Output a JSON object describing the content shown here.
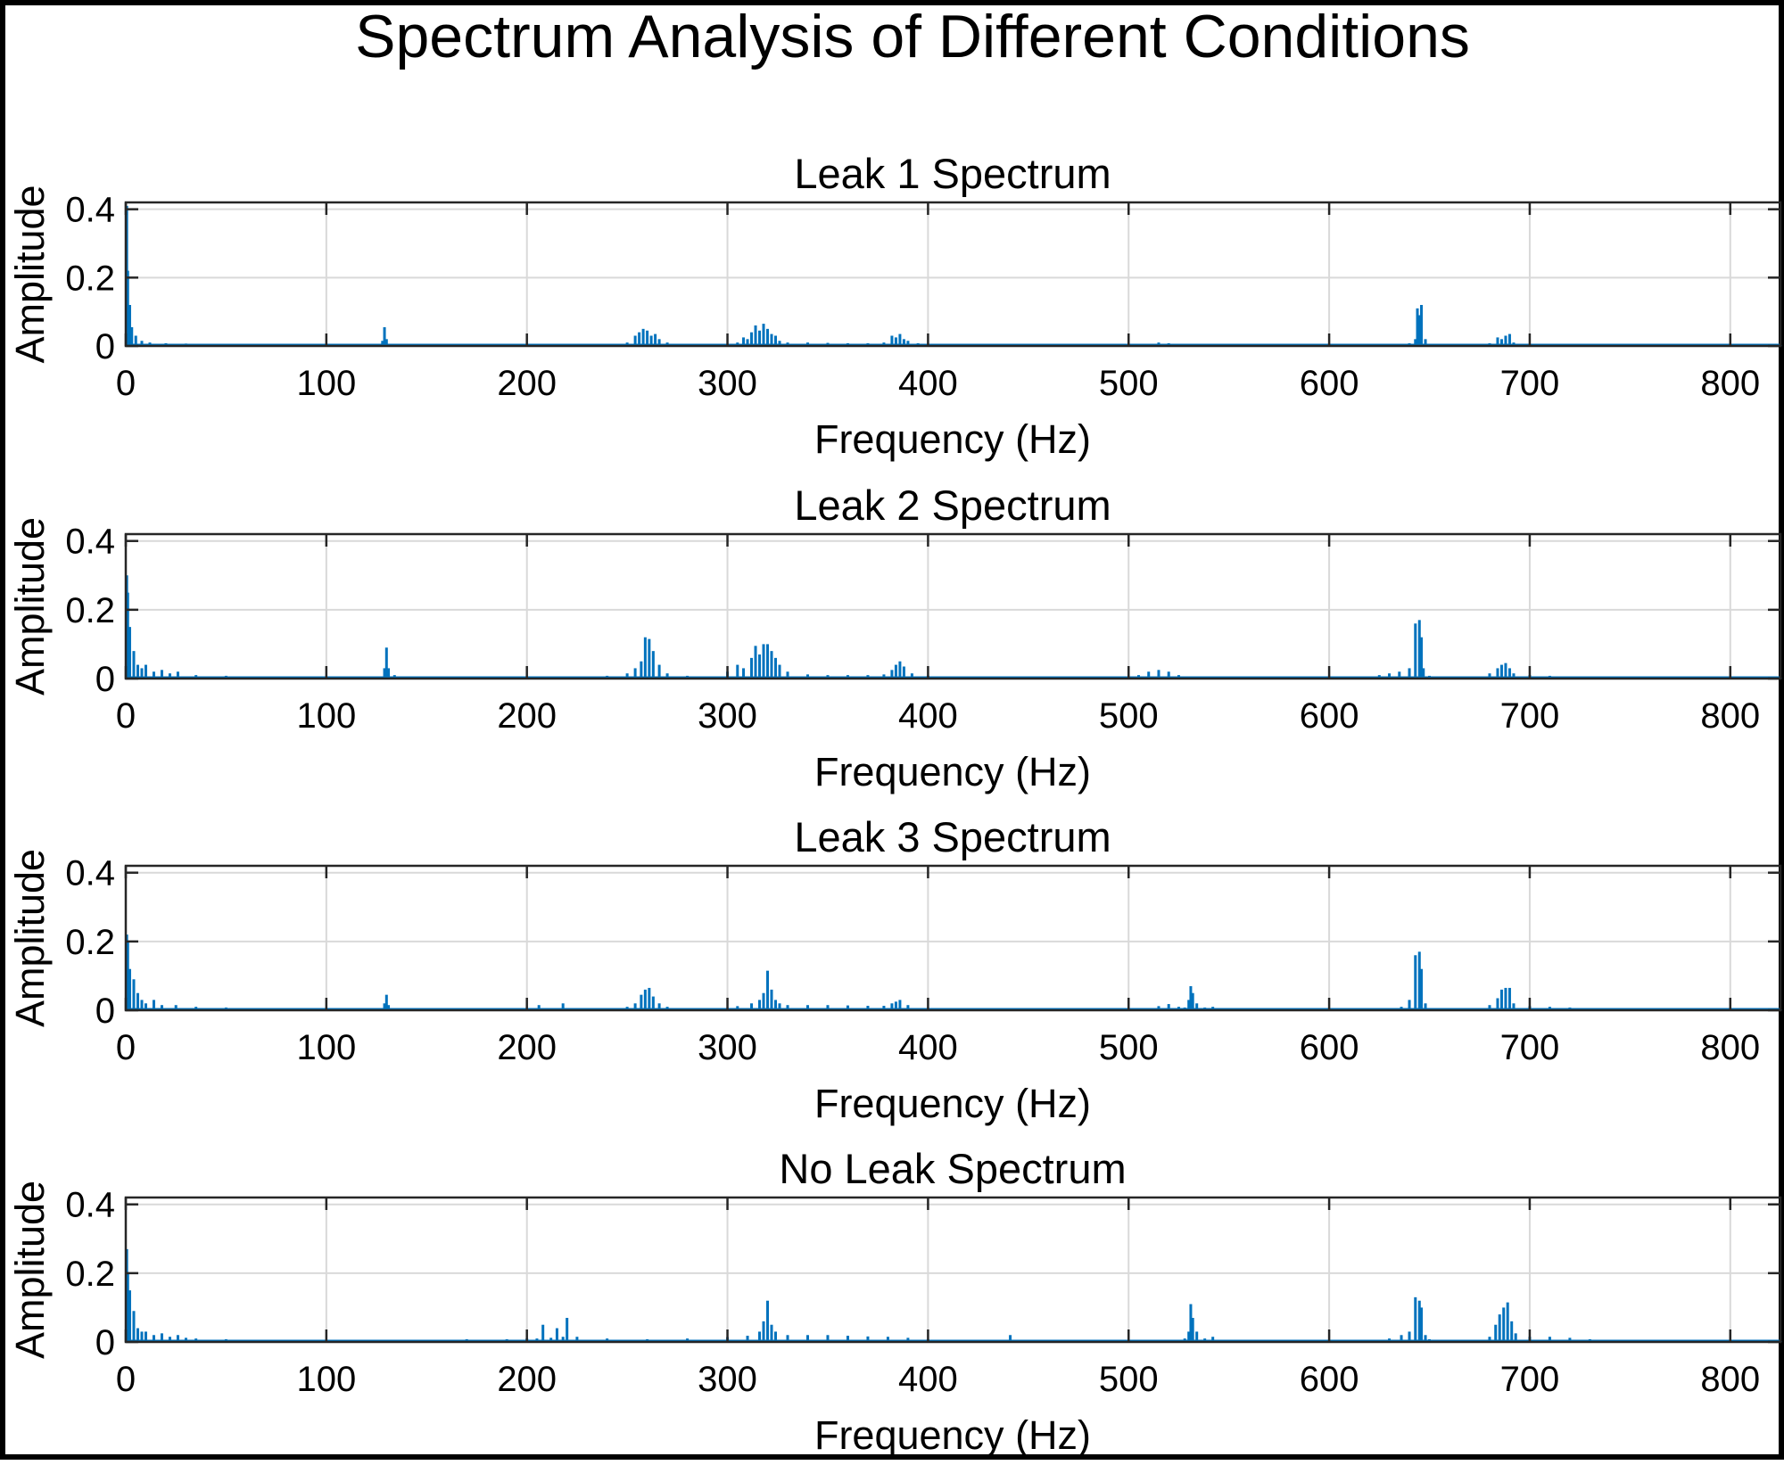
{
  "figure": {
    "title": "Spectrum Analysis of Different Conditions"
  },
  "chart_data": [
    {
      "type": "line",
      "title": "Leak 1 Spectrum",
      "xlabel": "Frequency (Hz)",
      "ylabel": "Amplitude",
      "xlim": [
        0,
        825
      ],
      "ylim": [
        0,
        0.42
      ],
      "xticks": [
        0,
        100,
        200,
        300,
        400,
        500,
        600,
        700,
        800
      ],
      "yticks": [
        0,
        0.2,
        0.4
      ],
      "xtick_labels": [
        "0",
        "100",
        "200",
        "300",
        "400",
        "500",
        "600",
        "700",
        "800"
      ],
      "ytick_labels": [
        "0",
        "0.2",
        "0.4"
      ],
      "grid": true,
      "color": "#0072BD",
      "x": [
        0.5,
        1,
        2,
        3,
        5,
        8,
        12,
        20,
        30,
        45,
        60,
        80,
        100,
        120,
        128,
        129,
        130,
        131,
        132,
        140,
        160,
        180,
        200,
        220,
        240,
        250,
        254,
        256,
        258,
        260,
        262,
        264,
        266,
        270,
        280,
        290,
        300,
        305,
        308,
        310,
        312,
        314,
        316,
        318,
        320,
        322,
        324,
        326,
        330,
        340,
        350,
        360,
        370,
        378,
        382,
        384,
        386,
        388,
        390,
        395,
        400,
        420,
        440,
        460,
        480,
        500,
        510,
        515,
        520,
        530,
        550,
        580,
        600,
        620,
        630,
        640,
        643,
        644,
        645,
        646,
        648,
        650,
        660,
        670,
        680,
        684,
        686,
        688,
        690,
        692,
        700,
        710,
        720,
        730,
        750,
        780,
        800,
        825
      ],
      "y": [
        0.41,
        0.22,
        0.12,
        0.055,
        0.03,
        0.015,
        0.01,
        0.008,
        0.007,
        0.006,
        0.005,
        0.004,
        0.004,
        0.004,
        0.015,
        0.055,
        0.02,
        0.006,
        0.004,
        0.004,
        0.004,
        0.003,
        0.003,
        0.003,
        0.005,
        0.01,
        0.03,
        0.04,
        0.05,
        0.045,
        0.03,
        0.035,
        0.02,
        0.01,
        0.005,
        0.004,
        0.005,
        0.01,
        0.025,
        0.02,
        0.04,
        0.06,
        0.045,
        0.065,
        0.05,
        0.035,
        0.03,
        0.015,
        0.01,
        0.01,
        0.009,
        0.008,
        0.008,
        0.01,
        0.03,
        0.025,
        0.035,
        0.02,
        0.015,
        0.008,
        0.004,
        0.003,
        0.003,
        0.003,
        0.003,
        0.003,
        0.005,
        0.01,
        0.008,
        0.004,
        0.003,
        0.003,
        0.003,
        0.003,
        0.004,
        0.008,
        0.02,
        0.11,
        0.09,
        0.12,
        0.02,
        0.005,
        0.003,
        0.004,
        0.008,
        0.025,
        0.02,
        0.03,
        0.035,
        0.01,
        0.006,
        0.005,
        0.006,
        0.004,
        0.002,
        0.002,
        0.002,
        0.002
      ]
    },
    {
      "type": "line",
      "title": "Leak 2 Spectrum",
      "xlabel": "Frequency (Hz)",
      "ylabel": "Amplitude",
      "xlim": [
        0,
        825
      ],
      "ylim": [
        0,
        0.42
      ],
      "xticks": [
        0,
        100,
        200,
        300,
        400,
        500,
        600,
        700,
        800
      ],
      "yticks": [
        0,
        0.2,
        0.4
      ],
      "xtick_labels": [
        "0",
        "100",
        "200",
        "300",
        "400",
        "500",
        "600",
        "700",
        "800"
      ],
      "ytick_labels": [
        "0",
        "0.2",
        "0.4"
      ],
      "grid": true,
      "color": "#0072BD",
      "x": [
        0.5,
        1,
        2,
        4,
        6,
        8,
        10,
        14,
        18,
        22,
        26,
        35,
        50,
        70,
        90,
        110,
        125,
        129,
        130,
        131,
        134,
        140,
        160,
        180,
        200,
        220,
        240,
        250,
        254,
        257,
        259,
        261,
        263,
        266,
        270,
        280,
        295,
        300,
        305,
        308,
        312,
        314,
        316,
        318,
        320,
        322,
        324,
        326,
        330,
        340,
        350,
        360,
        370,
        378,
        382,
        384,
        386,
        388,
        392,
        400,
        420,
        440,
        460,
        480,
        500,
        505,
        510,
        515,
        520,
        525,
        530,
        550,
        580,
        600,
        620,
        625,
        630,
        635,
        640,
        643,
        645,
        646,
        647,
        650,
        660,
        670,
        680,
        684,
        686,
        688,
        690,
        692,
        700,
        710,
        720,
        730,
        750,
        780,
        800,
        825
      ],
      "y": [
        0.3,
        0.25,
        0.15,
        0.08,
        0.04,
        0.03,
        0.04,
        0.02,
        0.025,
        0.015,
        0.02,
        0.01,
        0.008,
        0.006,
        0.005,
        0.005,
        0.005,
        0.03,
        0.09,
        0.03,
        0.01,
        0.005,
        0.005,
        0.004,
        0.004,
        0.004,
        0.008,
        0.015,
        0.03,
        0.05,
        0.12,
        0.115,
        0.08,
        0.04,
        0.015,
        0.008,
        0.006,
        0.02,
        0.04,
        0.03,
        0.06,
        0.095,
        0.07,
        0.1,
        0.1,
        0.08,
        0.06,
        0.04,
        0.02,
        0.012,
        0.01,
        0.01,
        0.01,
        0.012,
        0.025,
        0.04,
        0.05,
        0.035,
        0.015,
        0.008,
        0.005,
        0.004,
        0.004,
        0.004,
        0.004,
        0.01,
        0.02,
        0.025,
        0.02,
        0.01,
        0.005,
        0.004,
        0.004,
        0.004,
        0.005,
        0.01,
        0.015,
        0.02,
        0.03,
        0.16,
        0.17,
        0.12,
        0.03,
        0.008,
        0.005,
        0.006,
        0.015,
        0.03,
        0.04,
        0.045,
        0.03,
        0.015,
        0.01,
        0.008,
        0.006,
        0.004,
        0.003,
        0.002,
        0.002,
        0.002
      ]
    },
    {
      "type": "line",
      "title": "Leak 3 Spectrum",
      "xlabel": "Frequency (Hz)",
      "ylabel": "Amplitude",
      "xlim": [
        0,
        825
      ],
      "ylim": [
        0,
        0.42
      ],
      "xticks": [
        0,
        100,
        200,
        300,
        400,
        500,
        600,
        700,
        800
      ],
      "yticks": [
        0,
        0.2,
        0.4
      ],
      "xtick_labels": [
        "0",
        "100",
        "200",
        "300",
        "400",
        "500",
        "600",
        "700",
        "800"
      ],
      "ytick_labels": [
        "0",
        "0.2",
        "0.4"
      ],
      "grid": true,
      "color": "#0072BD",
      "x": [
        0.5,
        1,
        2,
        4,
        6,
        8,
        10,
        14,
        18,
        25,
        35,
        50,
        70,
        90,
        110,
        125,
        129,
        130,
        131,
        140,
        160,
        180,
        200,
        206,
        210,
        215,
        218,
        222,
        240,
        250,
        254,
        257,
        259,
        261,
        263,
        266,
        270,
        280,
        295,
        305,
        312,
        316,
        318,
        320,
        322,
        324,
        326,
        330,
        340,
        350,
        360,
        370,
        378,
        382,
        384,
        386,
        390,
        400,
        420,
        440,
        460,
        480,
        500,
        510,
        515,
        520,
        525,
        528,
        530,
        531,
        532,
        534,
        538,
        542,
        550,
        580,
        600,
        620,
        630,
        636,
        640,
        643,
        645,
        646,
        648,
        650,
        660,
        670,
        680,
        684,
        686,
        688,
        690,
        692,
        700,
        710,
        720,
        730,
        750,
        780,
        800,
        825
      ],
      "y": [
        0.22,
        0.2,
        0.12,
        0.09,
        0.05,
        0.03,
        0.02,
        0.03,
        0.015,
        0.015,
        0.01,
        0.008,
        0.006,
        0.005,
        0.004,
        0.005,
        0.02,
        0.045,
        0.015,
        0.004,
        0.004,
        0.004,
        0.004,
        0.015,
        0.006,
        0.004,
        0.02,
        0.005,
        0.005,
        0.01,
        0.02,
        0.045,
        0.06,
        0.065,
        0.04,
        0.02,
        0.01,
        0.006,
        0.006,
        0.012,
        0.02,
        0.03,
        0.05,
        0.115,
        0.06,
        0.03,
        0.02,
        0.015,
        0.015,
        0.015,
        0.014,
        0.013,
        0.013,
        0.02,
        0.025,
        0.03,
        0.015,
        0.006,
        0.004,
        0.004,
        0.004,
        0.004,
        0.004,
        0.006,
        0.012,
        0.018,
        0.01,
        0.008,
        0.03,
        0.07,
        0.05,
        0.02,
        0.008,
        0.01,
        0.004,
        0.003,
        0.003,
        0.004,
        0.006,
        0.01,
        0.03,
        0.16,
        0.17,
        0.12,
        0.02,
        0.006,
        0.004,
        0.006,
        0.015,
        0.035,
        0.06,
        0.065,
        0.065,
        0.02,
        0.012,
        0.01,
        0.008,
        0.005,
        0.003,
        0.002,
        0.002,
        0.002
      ]
    },
    {
      "type": "line",
      "title": "No Leak Spectrum",
      "xlabel": "Frequency (Hz)",
      "ylabel": "Amplitude",
      "xlim": [
        0,
        825
      ],
      "ylim": [
        0,
        0.42
      ],
      "xticks": [
        0,
        100,
        200,
        300,
        400,
        500,
        600,
        700,
        800
      ],
      "yticks": [
        0,
        0.2,
        0.4
      ],
      "xtick_labels": [
        "0",
        "100",
        "200",
        "300",
        "400",
        "500",
        "600",
        "700",
        "800"
      ],
      "ytick_labels": [
        "0",
        "0.2",
        "0.4"
      ],
      "grid": true,
      "color": "#0072BD",
      "x": [
        0.5,
        1,
        2,
        4,
        6,
        8,
        10,
        14,
        18,
        22,
        26,
        30,
        35,
        50,
        70,
        90,
        110,
        130,
        150,
        170,
        190,
        200,
        205,
        208,
        212,
        215,
        218,
        220,
        225,
        240,
        260,
        280,
        300,
        310,
        316,
        318,
        320,
        322,
        324,
        330,
        340,
        350,
        360,
        370,
        380,
        390,
        400,
        420,
        440,
        441,
        442,
        460,
        480,
        500,
        520,
        528,
        530,
        531,
        532,
        534,
        538,
        542,
        550,
        580,
        600,
        620,
        630,
        636,
        640,
        643,
        645,
        646,
        648,
        650,
        660,
        670,
        680,
        683,
        685,
        687,
        689,
        691,
        693,
        700,
        710,
        720,
        730,
        740,
        750,
        780,
        800,
        825
      ],
      "y": [
        0.27,
        0.2,
        0.15,
        0.09,
        0.04,
        0.03,
        0.03,
        0.02,
        0.025,
        0.015,
        0.02,
        0.012,
        0.01,
        0.008,
        0.006,
        0.006,
        0.005,
        0.005,
        0.006,
        0.008,
        0.008,
        0.01,
        0.01,
        0.05,
        0.012,
        0.04,
        0.015,
        0.07,
        0.015,
        0.01,
        0.008,
        0.01,
        0.014,
        0.018,
        0.03,
        0.06,
        0.12,
        0.05,
        0.03,
        0.02,
        0.02,
        0.02,
        0.018,
        0.016,
        0.015,
        0.012,
        0.008,
        0.006,
        0.006,
        0.02,
        0.006,
        0.005,
        0.005,
        0.005,
        0.005,
        0.01,
        0.03,
        0.11,
        0.07,
        0.03,
        0.01,
        0.015,
        0.005,
        0.004,
        0.004,
        0.005,
        0.01,
        0.02,
        0.03,
        0.13,
        0.12,
        0.1,
        0.02,
        0.008,
        0.005,
        0.006,
        0.015,
        0.05,
        0.08,
        0.1,
        0.115,
        0.06,
        0.025,
        0.015,
        0.015,
        0.012,
        0.008,
        0.005,
        0.003,
        0.002,
        0.002,
        0.002
      ]
    }
  ]
}
